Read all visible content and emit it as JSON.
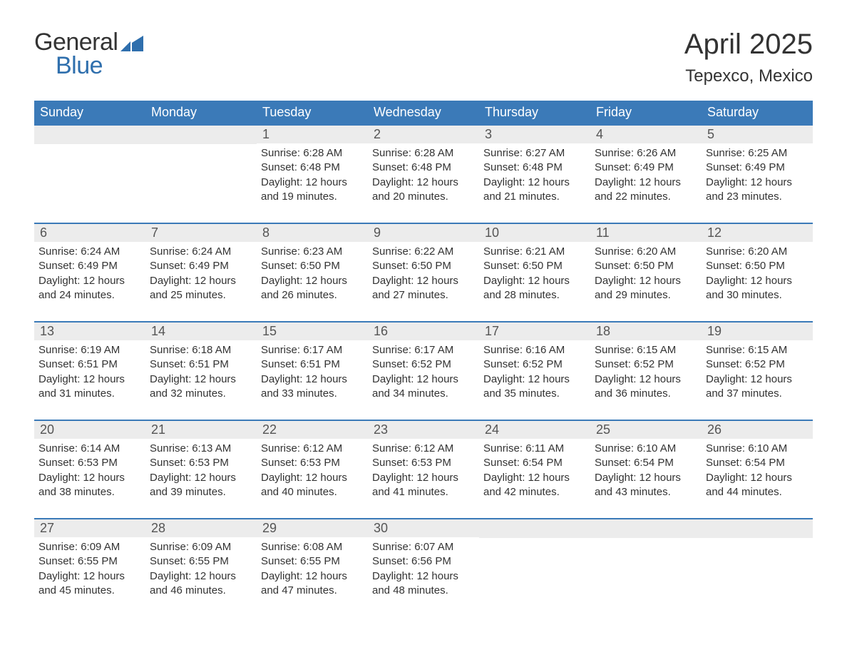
{
  "brand": {
    "general": "General",
    "blue": "Blue",
    "icon_color": "#2f6fad"
  },
  "title": "April 2025",
  "location": "Tepexco, Mexico",
  "colors": {
    "header_bg": "#3b7ab8",
    "header_text": "#ffffff",
    "daynum_bg": "#ececec",
    "daynum_text": "#555555",
    "body_text": "#333333",
    "row_border": "#3b7ab8",
    "page_bg": "#ffffff",
    "brand_blue": "#2f6fad"
  },
  "typography": {
    "title_fontsize": 40,
    "location_fontsize": 24,
    "dow_fontsize": 18,
    "daynum_fontsize": 18,
    "body_fontsize": 15,
    "logo_fontsize": 34
  },
  "days_of_week": [
    "Sunday",
    "Monday",
    "Tuesday",
    "Wednesday",
    "Thursday",
    "Friday",
    "Saturday"
  ],
  "weeks": [
    [
      {
        "day": "",
        "sunrise": "",
        "sunset": "",
        "daylight": ""
      },
      {
        "day": "",
        "sunrise": "",
        "sunset": "",
        "daylight": ""
      },
      {
        "day": "1",
        "sunrise": "Sunrise: 6:28 AM",
        "sunset": "Sunset: 6:48 PM",
        "daylight": "Daylight: 12 hours and 19 minutes."
      },
      {
        "day": "2",
        "sunrise": "Sunrise: 6:28 AM",
        "sunset": "Sunset: 6:48 PM",
        "daylight": "Daylight: 12 hours and 20 minutes."
      },
      {
        "day": "3",
        "sunrise": "Sunrise: 6:27 AM",
        "sunset": "Sunset: 6:48 PM",
        "daylight": "Daylight: 12 hours and 21 minutes."
      },
      {
        "day": "4",
        "sunrise": "Sunrise: 6:26 AM",
        "sunset": "Sunset: 6:49 PM",
        "daylight": "Daylight: 12 hours and 22 minutes."
      },
      {
        "day": "5",
        "sunrise": "Sunrise: 6:25 AM",
        "sunset": "Sunset: 6:49 PM",
        "daylight": "Daylight: 12 hours and 23 minutes."
      }
    ],
    [
      {
        "day": "6",
        "sunrise": "Sunrise: 6:24 AM",
        "sunset": "Sunset: 6:49 PM",
        "daylight": "Daylight: 12 hours and 24 minutes."
      },
      {
        "day": "7",
        "sunrise": "Sunrise: 6:24 AM",
        "sunset": "Sunset: 6:49 PM",
        "daylight": "Daylight: 12 hours and 25 minutes."
      },
      {
        "day": "8",
        "sunrise": "Sunrise: 6:23 AM",
        "sunset": "Sunset: 6:50 PM",
        "daylight": "Daylight: 12 hours and 26 minutes."
      },
      {
        "day": "9",
        "sunrise": "Sunrise: 6:22 AM",
        "sunset": "Sunset: 6:50 PM",
        "daylight": "Daylight: 12 hours and 27 minutes."
      },
      {
        "day": "10",
        "sunrise": "Sunrise: 6:21 AM",
        "sunset": "Sunset: 6:50 PM",
        "daylight": "Daylight: 12 hours and 28 minutes."
      },
      {
        "day": "11",
        "sunrise": "Sunrise: 6:20 AM",
        "sunset": "Sunset: 6:50 PM",
        "daylight": "Daylight: 12 hours and 29 minutes."
      },
      {
        "day": "12",
        "sunrise": "Sunrise: 6:20 AM",
        "sunset": "Sunset: 6:50 PM",
        "daylight": "Daylight: 12 hours and 30 minutes."
      }
    ],
    [
      {
        "day": "13",
        "sunrise": "Sunrise: 6:19 AM",
        "sunset": "Sunset: 6:51 PM",
        "daylight": "Daylight: 12 hours and 31 minutes."
      },
      {
        "day": "14",
        "sunrise": "Sunrise: 6:18 AM",
        "sunset": "Sunset: 6:51 PM",
        "daylight": "Daylight: 12 hours and 32 minutes."
      },
      {
        "day": "15",
        "sunrise": "Sunrise: 6:17 AM",
        "sunset": "Sunset: 6:51 PM",
        "daylight": "Daylight: 12 hours and 33 minutes."
      },
      {
        "day": "16",
        "sunrise": "Sunrise: 6:17 AM",
        "sunset": "Sunset: 6:52 PM",
        "daylight": "Daylight: 12 hours and 34 minutes."
      },
      {
        "day": "17",
        "sunrise": "Sunrise: 6:16 AM",
        "sunset": "Sunset: 6:52 PM",
        "daylight": "Daylight: 12 hours and 35 minutes."
      },
      {
        "day": "18",
        "sunrise": "Sunrise: 6:15 AM",
        "sunset": "Sunset: 6:52 PM",
        "daylight": "Daylight: 12 hours and 36 minutes."
      },
      {
        "day": "19",
        "sunrise": "Sunrise: 6:15 AM",
        "sunset": "Sunset: 6:52 PM",
        "daylight": "Daylight: 12 hours and 37 minutes."
      }
    ],
    [
      {
        "day": "20",
        "sunrise": "Sunrise: 6:14 AM",
        "sunset": "Sunset: 6:53 PM",
        "daylight": "Daylight: 12 hours and 38 minutes."
      },
      {
        "day": "21",
        "sunrise": "Sunrise: 6:13 AM",
        "sunset": "Sunset: 6:53 PM",
        "daylight": "Daylight: 12 hours and 39 minutes."
      },
      {
        "day": "22",
        "sunrise": "Sunrise: 6:12 AM",
        "sunset": "Sunset: 6:53 PM",
        "daylight": "Daylight: 12 hours and 40 minutes."
      },
      {
        "day": "23",
        "sunrise": "Sunrise: 6:12 AM",
        "sunset": "Sunset: 6:53 PM",
        "daylight": "Daylight: 12 hours and 41 minutes."
      },
      {
        "day": "24",
        "sunrise": "Sunrise: 6:11 AM",
        "sunset": "Sunset: 6:54 PM",
        "daylight": "Daylight: 12 hours and 42 minutes."
      },
      {
        "day": "25",
        "sunrise": "Sunrise: 6:10 AM",
        "sunset": "Sunset: 6:54 PM",
        "daylight": "Daylight: 12 hours and 43 minutes."
      },
      {
        "day": "26",
        "sunrise": "Sunrise: 6:10 AM",
        "sunset": "Sunset: 6:54 PM",
        "daylight": "Daylight: 12 hours and 44 minutes."
      }
    ],
    [
      {
        "day": "27",
        "sunrise": "Sunrise: 6:09 AM",
        "sunset": "Sunset: 6:55 PM",
        "daylight": "Daylight: 12 hours and 45 minutes."
      },
      {
        "day": "28",
        "sunrise": "Sunrise: 6:09 AM",
        "sunset": "Sunset: 6:55 PM",
        "daylight": "Daylight: 12 hours and 46 minutes."
      },
      {
        "day": "29",
        "sunrise": "Sunrise: 6:08 AM",
        "sunset": "Sunset: 6:55 PM",
        "daylight": "Daylight: 12 hours and 47 minutes."
      },
      {
        "day": "30",
        "sunrise": "Sunrise: 6:07 AM",
        "sunset": "Sunset: 6:56 PM",
        "daylight": "Daylight: 12 hours and 48 minutes."
      },
      {
        "day": "",
        "sunrise": "",
        "sunset": "",
        "daylight": ""
      },
      {
        "day": "",
        "sunrise": "",
        "sunset": "",
        "daylight": ""
      },
      {
        "day": "",
        "sunrise": "",
        "sunset": "",
        "daylight": ""
      }
    ]
  ]
}
